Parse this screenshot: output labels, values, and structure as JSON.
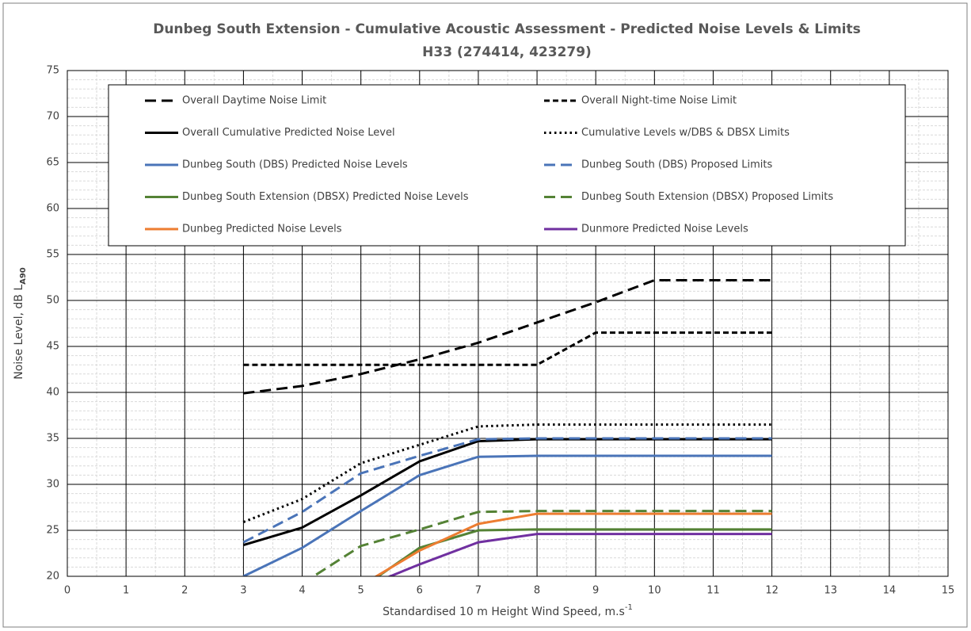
{
  "chart_data": {
    "type": "line",
    "title": "Dunbeg South Extension - Cumulative Acoustic Assessment - Predicted Noise Levels & Limits",
    "subtitle": "H33 (274414, 423279)",
    "x_label": "Standardised 10 m Height Wind Speed, m.s",
    "x_label_sup": "-1",
    "y_label": "Noise Level, dB L",
    "y_label_sub": "A90",
    "x": [
      3,
      4,
      5,
      6,
      7,
      8,
      9,
      10,
      11,
      12
    ],
    "xlim": [
      0,
      15
    ],
    "xticks": [
      0,
      1,
      2,
      3,
      4,
      5,
      6,
      7,
      8,
      9,
      10,
      11,
      12,
      13,
      14,
      15
    ],
    "ylim": [
      20,
      75
    ],
    "yticks": [
      20,
      25,
      30,
      35,
      40,
      45,
      50,
      55,
      60,
      65,
      70,
      75
    ],
    "grid": true,
    "minor_grid": {
      "x": 0.5,
      "y": 1
    },
    "legend": "top",
    "series": [
      {
        "name": "Overall Daytime Noise Limit",
        "color": "#000000",
        "style": "long",
        "values": [
          39.9,
          40.7,
          42.0,
          43.6,
          45.4,
          47.6,
          49.8,
          52.2,
          52.2,
          52.2
        ]
      },
      {
        "name": "Overall Night-time Noise Limit",
        "color": "#000000",
        "style": "short",
        "values": [
          43.0,
          43.0,
          43.0,
          43.0,
          43.0,
          43.0,
          46.5,
          46.5,
          46.5,
          46.5
        ]
      },
      {
        "name": "Overall Cumulative Predicted Noise Level",
        "color": "#000000",
        "style": "solid",
        "values": [
          23.4,
          25.3,
          28.8,
          32.5,
          34.7,
          34.9,
          34.9,
          34.9,
          34.9,
          34.9
        ]
      },
      {
        "name": "Cumulative Levels w/DBS & DBSX Limits",
        "color": "#000000",
        "style": "dot",
        "values": [
          25.9,
          28.4,
          32.3,
          34.3,
          36.3,
          36.5,
          36.5,
          36.5,
          36.5,
          36.5
        ]
      },
      {
        "name": "Dunbeg South (DBS) Predicted Noise Levels",
        "color": "#4a74b8",
        "style": "solid",
        "values": [
          20.0,
          23.1,
          27.1,
          31.0,
          33.0,
          33.1,
          33.1,
          33.1,
          33.1,
          33.1
        ]
      },
      {
        "name": "Dunbeg South (DBS) Proposed Limits",
        "color": "#4a74b8",
        "style": "long",
        "values": [
          23.7,
          27.0,
          31.2,
          33.1,
          34.9,
          35.0,
          35.0,
          35.0,
          35.0,
          35.0
        ]
      },
      {
        "name": "Dunbeg South Extension (DBSX) Predicted Noise Levels",
        "color": "#548235",
        "style": "solid",
        "values": [
          null,
          null,
          18.7,
          23.1,
          25.0,
          25.1,
          25.1,
          25.1,
          25.1,
          25.1
        ]
      },
      {
        "name": "Dunbeg South Extension (DBSX) Proposed Limits",
        "color": "#548235",
        "style": "long",
        "values": [
          null,
          19.2,
          23.3,
          25.1,
          27.0,
          27.1,
          27.1,
          27.1,
          27.1,
          27.1
        ]
      },
      {
        "name": "Dunbeg Predicted Noise Levels",
        "color": "#ed7d31",
        "style": "solid",
        "values": [
          null,
          null,
          19.0,
          22.8,
          25.7,
          26.8,
          26.8,
          26.8,
          26.8,
          26.8
        ]
      },
      {
        "name": "Dunmore Predicted Noise Levels",
        "color": "#7030a0",
        "style": "solid",
        "values": [
          null,
          null,
          18.7,
          21.3,
          23.7,
          24.6,
          24.6,
          24.6,
          24.6,
          24.6
        ]
      }
    ]
  }
}
